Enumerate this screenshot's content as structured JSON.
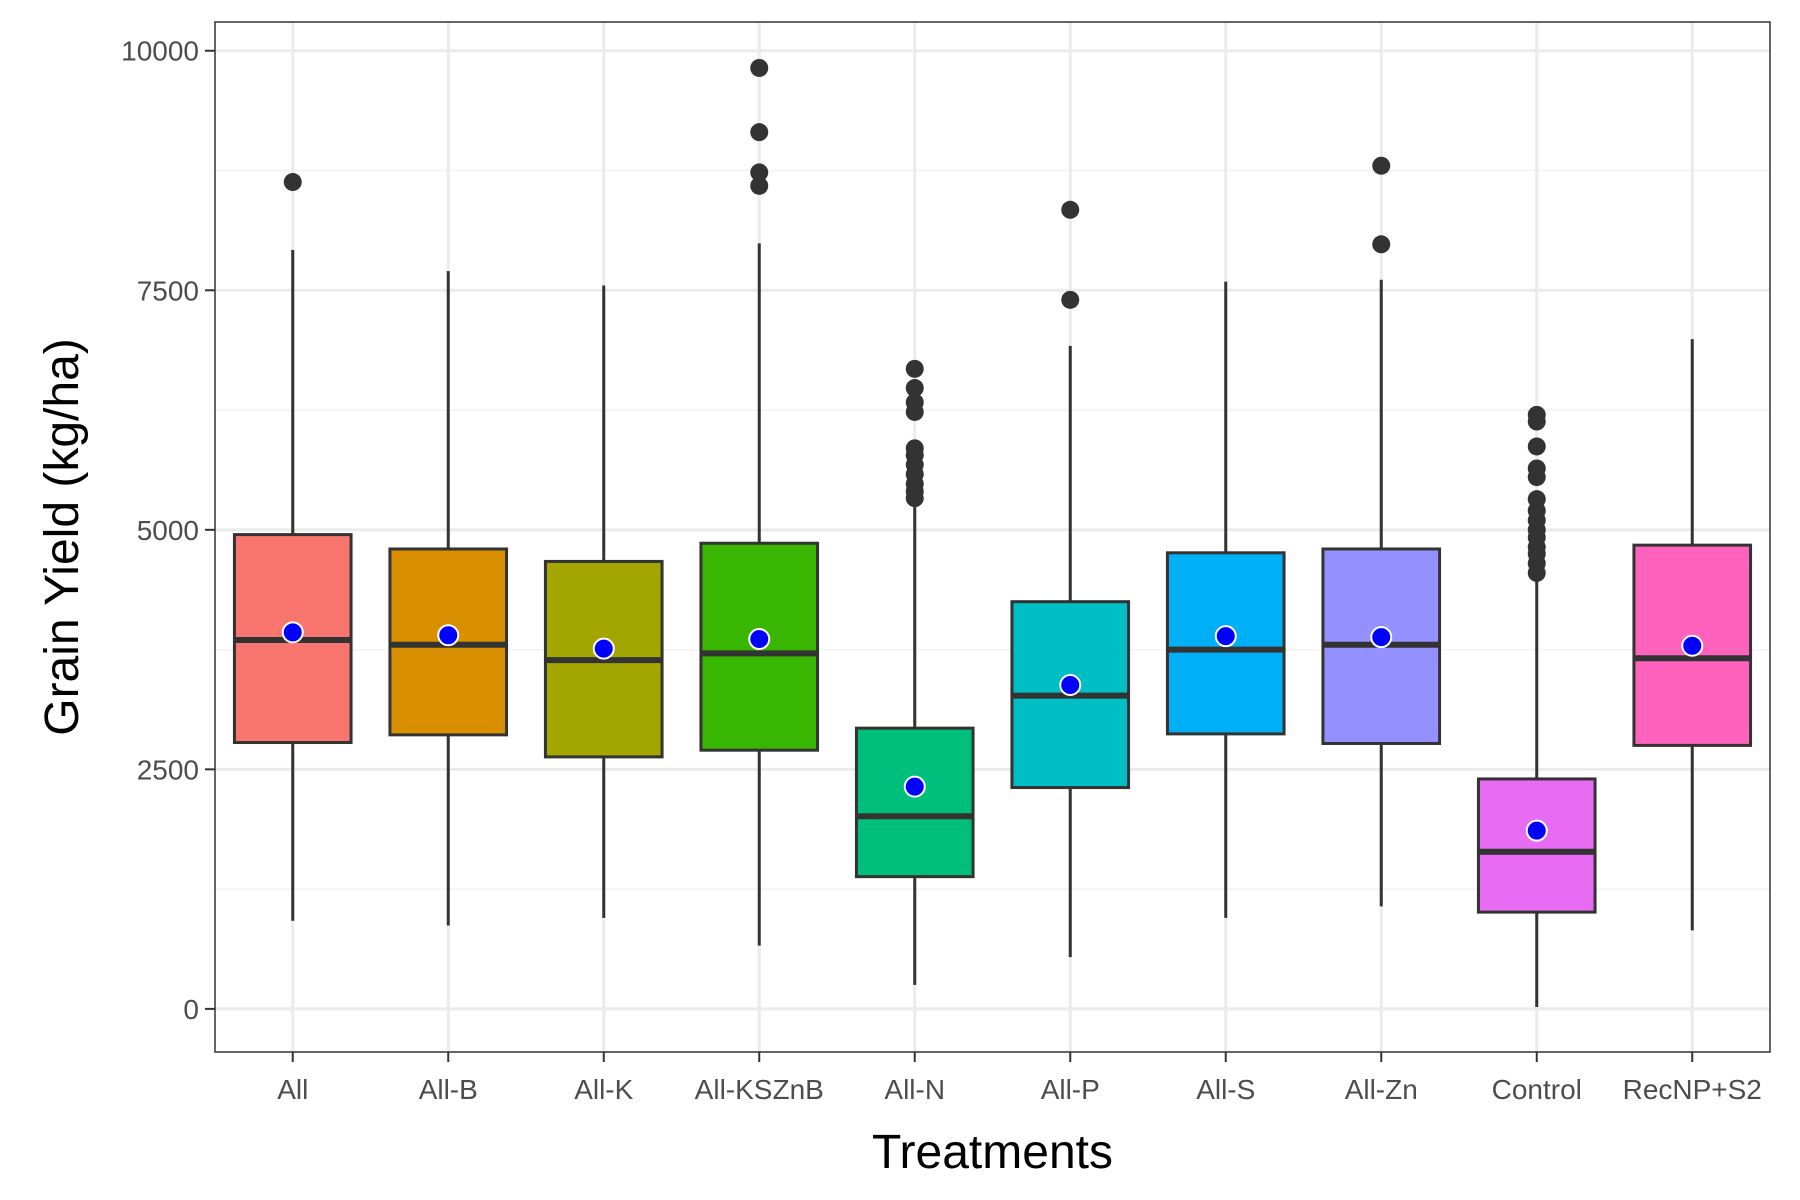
{
  "chart_data": {
    "type": "box",
    "xlabel": "Treatments",
    "ylabel": "Grain Yield (kg/ha)",
    "ylim": [
      -450,
      10300
    ],
    "y_ticks": [
      0,
      2500,
      5000,
      7500,
      10000
    ],
    "y_minor_ticks": [
      1250,
      3750,
      6250,
      8750
    ],
    "grid": true,
    "legend": "none",
    "categories": [
      "All",
      "All-B",
      "All-K",
      "All-KSZnB",
      "All-N",
      "All-P",
      "All-S",
      "All-Zn",
      "Control",
      "RecNP+S2"
    ],
    "x_tick_labels": [
      "All",
      "All-B",
      "All-K",
      "All-KSZnB",
      "All-N",
      "All-P",
      "All-S",
      "All-Zn",
      "Control",
      "RecNP+S2"
    ],
    "boxes": [
      {
        "category": "All",
        "min": 920,
        "q1": 2780,
        "median": 3850,
        "q3": 4950,
        "max": 7920,
        "mean": 3930,
        "outliers": [
          8630
        ],
        "color": "#F8766D"
      },
      {
        "category": "All-B",
        "min": 870,
        "q1": 2860,
        "median": 3800,
        "q3": 4800,
        "max": 7700,
        "mean": 3900,
        "outliers": [],
        "color": "#D89000"
      },
      {
        "category": "All-K",
        "min": 950,
        "q1": 2630,
        "median": 3640,
        "q3": 4670,
        "max": 7550,
        "mean": 3760,
        "outliers": [],
        "color": "#A3A500"
      },
      {
        "category": "All-KSZnB",
        "min": 660,
        "q1": 2700,
        "median": 3710,
        "q3": 4860,
        "max": 7990,
        "mean": 3860,
        "outliers": [
          8590,
          8730,
          9150,
          9820
        ],
        "color": "#39B600"
      },
      {
        "category": "All-N",
        "min": 250,
        "q1": 1380,
        "median": 2010,
        "q3": 2930,
        "max": 5250,
        "mean": 2320,
        "outliers": [
          5330,
          5400,
          5480,
          5580,
          5680,
          5780,
          5850,
          6230,
          6330,
          6480,
          6680
        ],
        "color": "#00BF7D"
      },
      {
        "category": "All-P",
        "min": 540,
        "q1": 2310,
        "median": 3270,
        "q3": 4250,
        "max": 6920,
        "mean": 3380,
        "outliers": [
          7400,
          8340
        ],
        "color": "#00BFC4"
      },
      {
        "category": "All-S",
        "min": 950,
        "q1": 2870,
        "median": 3750,
        "q3": 4760,
        "max": 7590,
        "mean": 3890,
        "outliers": [],
        "color": "#00B0F6"
      },
      {
        "category": "All-Zn",
        "min": 1070,
        "q1": 2770,
        "median": 3800,
        "q3": 4800,
        "max": 7610,
        "mean": 3880,
        "outliers": [
          7980,
          8800
        ],
        "color": "#9590FF"
      },
      {
        "category": "Control",
        "min": 20,
        "q1": 1010,
        "median": 1640,
        "q3": 2400,
        "max": 4470,
        "mean": 1860,
        "outliers": [
          4550,
          4650,
          4750,
          4820,
          4920,
          5000,
          5100,
          5200,
          5320,
          5550,
          5640,
          5870,
          6130,
          6200
        ],
        "color": "#E76BF3"
      },
      {
        "category": "RecNP+S2",
        "min": 820,
        "q1": 2750,
        "median": 3660,
        "q3": 4840,
        "max": 6990,
        "mean": 3790,
        "outliers": [],
        "color": "#FF62BC"
      }
    ],
    "mean_marker_color": "#0000FF",
    "outlier_color": "#333333"
  }
}
